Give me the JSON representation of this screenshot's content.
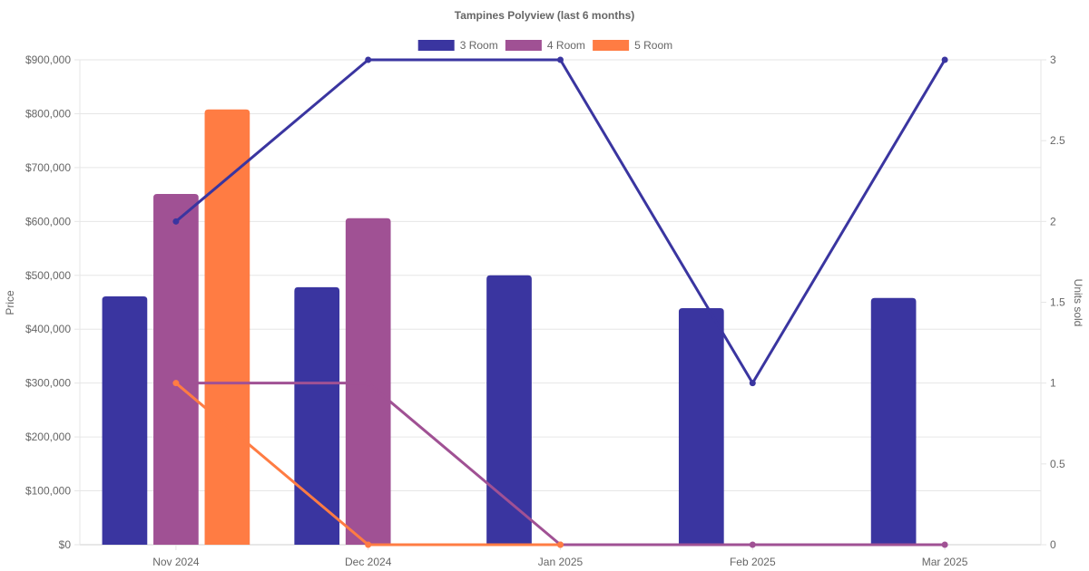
{
  "chart_data": {
    "type": "bar",
    "title": "Tampines Polyview (last 6 months)",
    "categories": [
      "Nov 2024",
      "Dec 2024",
      "Jan 2025",
      "Feb 2025",
      "Mar 2025"
    ],
    "y_left": {
      "label": "Price",
      "min": 0,
      "max": 900000,
      "step": 100000,
      "ticks": [
        "$0",
        "$100,000",
        "$200,000",
        "$300,000",
        "$400,000",
        "$500,000",
        "$600,000",
        "$700,000",
        "$800,000",
        "$900,000"
      ]
    },
    "y_right": {
      "label": "Units sold",
      "min": 0,
      "max": 3,
      "step": 0.5,
      "ticks": [
        "0",
        "0.5",
        "1",
        "1.5",
        "2",
        "2.5",
        "3"
      ]
    },
    "grid": true,
    "legend_position": "top",
    "series": [
      {
        "name": "3 Room",
        "color": "#3a35a0",
        "price": [
          461000,
          478000,
          500000,
          439000,
          458000
        ],
        "units": [
          2,
          3,
          3,
          1,
          3
        ]
      },
      {
        "name": "4 Room",
        "color": "#a05194",
        "price": [
          651000,
          606000,
          null,
          null,
          null
        ],
        "units": [
          1,
          1,
          0,
          0,
          0
        ]
      },
      {
        "name": "5 Room",
        "color": "#ff7c43",
        "price": [
          808000,
          null,
          null,
          null,
          null
        ],
        "units": [
          1,
          0,
          0,
          null,
          null
        ]
      }
    ]
  }
}
